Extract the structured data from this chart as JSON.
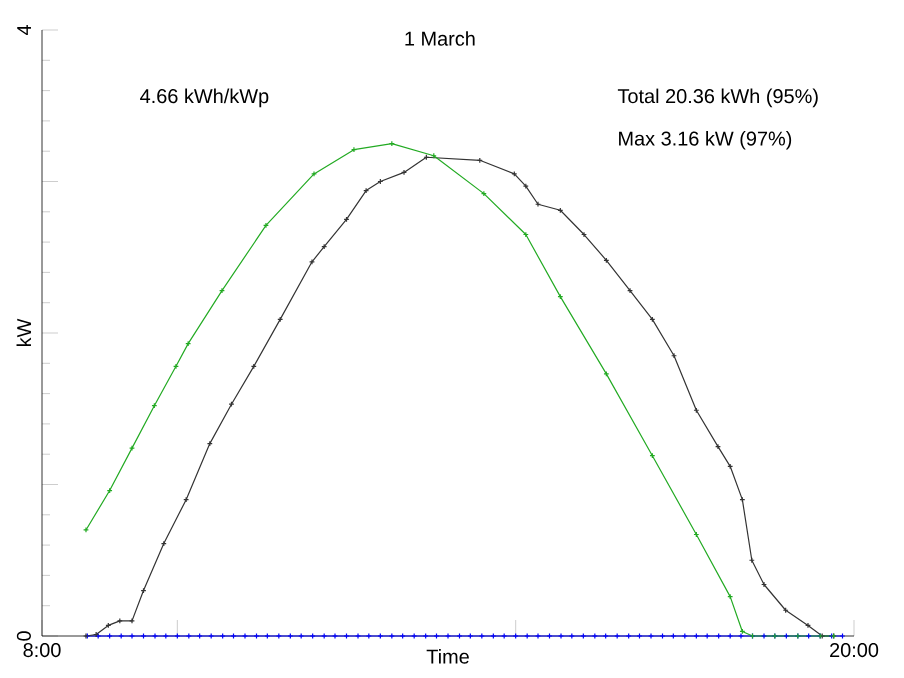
{
  "chart_data": {
    "type": "line",
    "title": "1 March",
    "xlabel": "Time",
    "ylabel": "kW",
    "annotations": [
      "4.66 kWh/kWp",
      "Total 20.36 kWh (95%)",
      "Max 3.16 kW (97%)"
    ],
    "xlim": [
      8,
      20
    ],
    "ylim": [
      0,
      4
    ],
    "xticks": [
      {
        "value": 8,
        "label": "8:00"
      },
      {
        "value": 10,
        "label": null
      },
      {
        "value": 15,
        "label": null
      },
      {
        "value": 20,
        "label": "20:00"
      }
    ],
    "yticks": [
      0,
      {
        "value": 1,
        "label": null
      },
      {
        "value": 2,
        "label": null
      },
      {
        "value": 3,
        "label": null
      },
      4
    ],
    "marker": "cross",
    "line_style": "solid",
    "grid": false,
    "series": [
      {
        "color": "#22aa22",
        "x": [
          8.65,
          9.0,
          9.33,
          9.66,
          9.98,
          10.16,
          10.66,
          11.31,
          12.02,
          12.61,
          13.17,
          13.79,
          14.53,
          15.15,
          15.66,
          16.34,
          17.02,
          17.67,
          18.17,
          18.35,
          18.5,
          18.83,
          19.17,
          19.5,
          19.7
        ],
        "values": [
          0.7,
          0.96,
          1.24,
          1.52,
          1.78,
          1.93,
          2.28,
          2.71,
          3.05,
          3.21,
          3.25,
          3.17,
          2.92,
          2.65,
          2.24,
          1.73,
          1.19,
          0.67,
          0.26,
          0.03,
          0,
          0,
          0,
          0,
          0
        ]
      },
      {
        "color": "#333333",
        "x": [
          8.65,
          8.8,
          8.98,
          9.15,
          9.33,
          9.5,
          9.8,
          10.13,
          10.48,
          10.8,
          11.13,
          11.52,
          11.99,
          12.17,
          12.5,
          12.79,
          13.0,
          13.35,
          13.68,
          14.47,
          14.98,
          15.15,
          15.33,
          15.66,
          16.01,
          16.34,
          16.69,
          17.02,
          17.34,
          17.67,
          17.99,
          18.17,
          18.35,
          18.49,
          18.67,
          18.99,
          19.32,
          19.53,
          19.7
        ],
        "values": [
          0,
          0.01,
          0.07,
          0.1,
          0.1,
          0.3,
          0.61,
          0.9,
          1.27,
          1.53,
          1.78,
          2.09,
          2.47,
          2.57,
          2.75,
          2.94,
          3.0,
          3.06,
          3.16,
          3.14,
          3.05,
          2.97,
          2.85,
          2.81,
          2.65,
          2.48,
          2.28,
          2.09,
          1.85,
          1.49,
          1.25,
          1.12,
          0.9,
          0.5,
          0.34,
          0.17,
          0.07,
          0,
          0
        ]
      },
      {
        "color": "#0000ff",
        "x": [
          8.67,
          8.83,
          9.0,
          9.17,
          9.33,
          9.5,
          9.67,
          9.83,
          10.0,
          10.17,
          10.33,
          10.5,
          10.67,
          10.83,
          11.0,
          11.17,
          11.33,
          11.5,
          11.67,
          11.83,
          12.0,
          12.17,
          12.33,
          12.5,
          12.67,
          12.83,
          13.0,
          13.17,
          13.33,
          13.5,
          13.67,
          13.83,
          14.0,
          14.17,
          14.33,
          14.5,
          14.67,
          14.83,
          15.0,
          15.17,
          15.33,
          15.5,
          15.67,
          15.83,
          16.0,
          16.17,
          16.33,
          16.5,
          16.67,
          16.83,
          17.0,
          17.17,
          17.33,
          17.5,
          17.67,
          17.83,
          18.0,
          18.17,
          18.33,
          18.5,
          18.67,
          18.83,
          19.0,
          19.17,
          19.33,
          19.5,
          19.67,
          19.83
        ],
        "values": [
          0,
          0,
          0,
          0,
          0,
          0,
          0,
          0,
          0,
          0,
          0,
          0,
          0,
          0,
          0,
          0,
          0,
          0,
          0,
          0,
          0,
          0,
          0,
          0,
          0,
          0,
          0,
          0,
          0,
          0,
          0,
          0,
          0,
          0,
          0,
          0,
          0,
          0,
          0,
          0,
          0,
          0,
          0,
          0,
          0,
          0,
          0,
          0,
          0,
          0,
          0,
          0,
          0,
          0,
          0,
          0,
          0,
          0,
          0,
          0,
          0,
          0,
          0,
          0,
          0,
          0,
          0,
          0
        ]
      }
    ]
  }
}
